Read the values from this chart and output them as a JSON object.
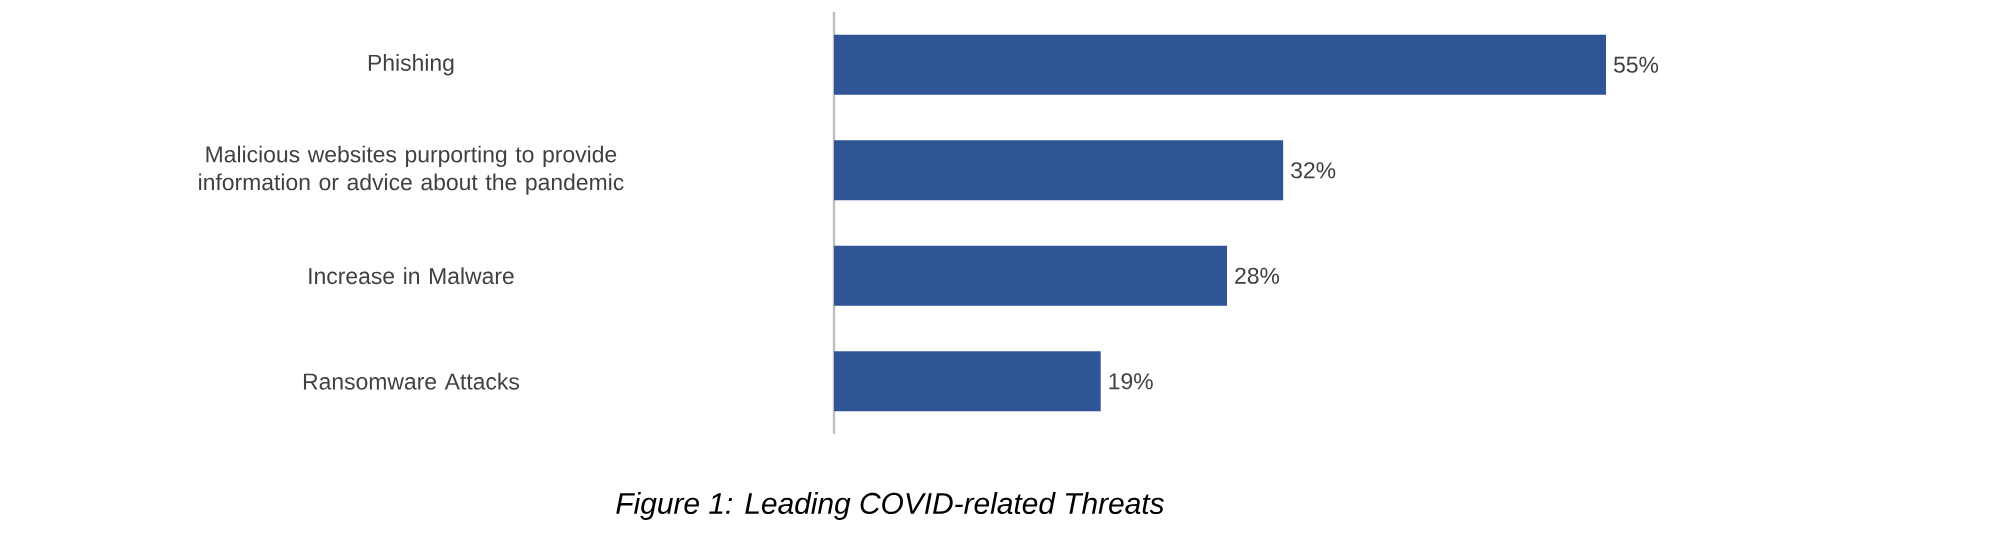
{
  "chart_data": {
    "type": "bar",
    "orientation": "horizontal",
    "annotations": [
      "Figure 1: Leading COVID-related Threats"
    ],
    "categories": [
      "Phishing",
      "Malicious websites purporting to provide information or advice about the pandemic",
      "Increase in Malware",
      "Ransomware Attacks"
    ],
    "values": [
      55,
      32,
      28,
      19
    ],
    "value_labels": [
      "55%",
      "32%",
      "28%",
      "19%"
    ],
    "color": "#2f5597"
  }
}
